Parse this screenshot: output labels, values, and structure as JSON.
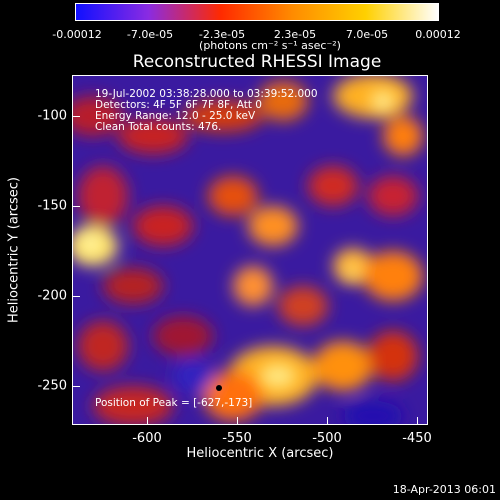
{
  "colorbar": {
    "ticks": [
      "-0.00012",
      "-7.0e-05",
      "-2.3e-05",
      "2.3e-05",
      "7.0e-05",
      "0.00012"
    ],
    "units": "(photons cm⁻² s⁻¹ asec⁻²)",
    "colors": [
      "#1010ff",
      "#8a2be2",
      "#ff2a00",
      "#ff8c00",
      "#ffd000",
      "#ffffff"
    ]
  },
  "title": "Reconstructed RHESSI Image",
  "annotations": {
    "time_range": "19-Jul-2002 03:38:28.000 to 03:39:52.000",
    "detectors": "Detectors: 4F 5F 6F 7F 8F, Att 0",
    "energy": "Energy Range: 12.0 - 25.0 keV",
    "method": "Clean    Total counts: 476.",
    "peak": "Position of Peak = [-627,-173]"
  },
  "x_axis": {
    "label": "Heliocentric X (arcsec)",
    "ticks": [
      "-600",
      "-550",
      "-500",
      "-450"
    ]
  },
  "y_axis": {
    "label": "Heliocentric Y (arcsec)",
    "ticks": [
      "-100",
      "-150",
      "-200",
      "-250"
    ]
  },
  "timestamp": "18-Apr-2013 06:01"
}
